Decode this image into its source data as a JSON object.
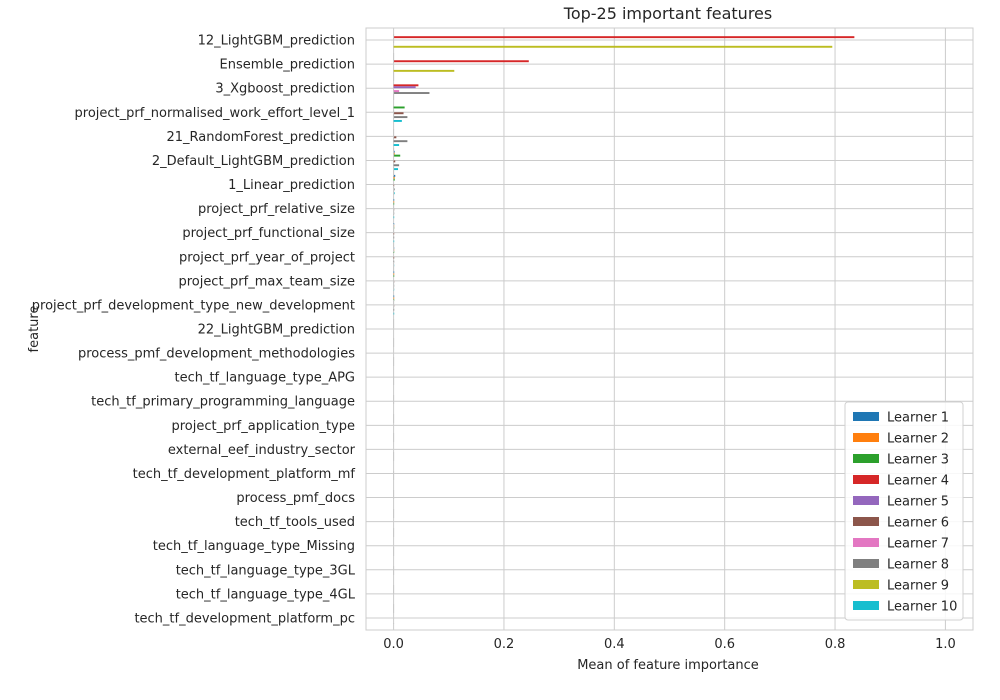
{
  "chart_data": {
    "type": "bar",
    "orientation": "horizontal",
    "title": "Top-25 important features",
    "xlabel": "Mean of feature importance",
    "ylabel": "feature",
    "xlim": [
      -0.05,
      1.05
    ],
    "xticks": [
      0.0,
      0.2,
      0.4,
      0.6,
      0.8,
      1.0
    ],
    "xtick_labels": [
      "0.0",
      "0.2",
      "0.4",
      "0.6",
      "0.8",
      "1.0"
    ],
    "grid": true,
    "legend_position": "bottom-right",
    "categories": [
      "12_LightGBM_prediction",
      "Ensemble_prediction",
      "3_Xgboost_prediction",
      "project_prf_normalised_work_effort_level_1",
      "21_RandomForest_prediction",
      "2_Default_LightGBM_prediction",
      "1_Linear_prediction",
      "project_prf_relative_size",
      "project_prf_functional_size",
      "project_prf_year_of_project",
      "project_prf_max_team_size",
      "project_prf_development_type_new_development",
      "22_LightGBM_prediction",
      "process_pmf_development_methodologies",
      "tech_tf_language_type_APG",
      "tech_tf_primary_programming_language",
      "project_prf_application_type",
      "external_eef_industry_sector",
      "tech_tf_development_platform_mf",
      "process_pmf_docs",
      "tech_tf_tools_used",
      "tech_tf_language_type_Missing",
      "tech_tf_language_type_3GL",
      "tech_tf_language_type_4GL",
      "tech_tf_development_platform_pc"
    ],
    "series": [
      {
        "name": "Learner 1",
        "color": "#1f77b4",
        "values": [
          0,
          0,
          0,
          0,
          0,
          0.002,
          0.003,
          0.001,
          0.001,
          0.001,
          0.001,
          0.001,
          0,
          0,
          0,
          0,
          0,
          0,
          0,
          0,
          0,
          0,
          0,
          0,
          0
        ]
      },
      {
        "name": "Learner 2",
        "color": "#ff7f0e",
        "values": [
          0,
          0,
          0,
          0,
          0,
          0.002,
          0.002,
          0.001,
          0.001,
          0.001,
          0.001,
          0.001,
          0,
          0,
          0,
          0,
          0,
          0,
          0,
          0,
          0,
          0,
          0,
          0,
          0
        ]
      },
      {
        "name": "Learner 3",
        "color": "#2ca02c",
        "values": [
          0,
          0,
          0,
          0.02,
          0,
          0.012,
          0.002,
          0.001,
          0.001,
          0.001,
          0.001,
          0.001,
          0,
          0,
          0,
          0,
          0,
          0,
          0,
          0,
          0,
          0,
          0,
          0,
          0
        ]
      },
      {
        "name": "Learner 4",
        "color": "#d62728",
        "values": [
          0.835,
          0.245,
          0.045,
          0,
          0,
          0,
          0,
          0,
          0,
          0,
          0,
          0,
          0,
          0,
          0,
          0,
          0,
          0,
          0,
          0,
          0,
          0,
          0,
          0,
          0
        ]
      },
      {
        "name": "Learner 5",
        "color": "#9467bd",
        "values": [
          0,
          0,
          0.04,
          0,
          0,
          0,
          0,
          0,
          0,
          0,
          0,
          0,
          0,
          0,
          0,
          0,
          0,
          0,
          0,
          0,
          0,
          0,
          0,
          0,
          0
        ]
      },
      {
        "name": "Learner 6",
        "color": "#8c564b",
        "values": [
          0,
          0,
          0,
          0.018,
          0.005,
          0.003,
          0.001,
          0.001,
          0.001,
          0.001,
          0.001,
          0.001,
          0,
          0,
          0,
          0,
          0,
          0,
          0,
          0,
          0,
          0,
          0,
          0,
          0
        ]
      },
      {
        "name": "Learner 7",
        "color": "#e377c2",
        "values": [
          0.0,
          0.0,
          0.01,
          0.0,
          0.0,
          0.0,
          0.0,
          0.0,
          0.0,
          0.0,
          0.0,
          0.0,
          0.0,
          0.0,
          0.0,
          0.0,
          0.0,
          0.0,
          0.0,
          0.0,
          0.0,
          0.0,
          0.0,
          0.0,
          0.0
        ]
      },
      {
        "name": "Learner 8",
        "color": "#7f7f7f",
        "values": [
          0,
          0,
          0.065,
          0.025,
          0.025,
          0.01,
          0.002,
          0.001,
          0.001,
          0.001,
          0.001,
          0.001,
          0,
          0,
          0,
          0,
          0,
          0,
          0,
          0,
          0,
          0,
          0,
          0,
          0
        ]
      },
      {
        "name": "Learner 9",
        "color": "#bcbd22",
        "values": [
          0.795,
          0.11,
          0,
          0,
          0,
          0,
          0,
          0,
          0,
          0,
          0,
          0,
          0,
          0,
          0,
          0,
          0,
          0,
          0,
          0,
          0,
          0,
          0,
          0,
          0
        ]
      },
      {
        "name": "Learner 10",
        "color": "#17becf",
        "values": [
          0,
          0,
          0,
          0.015,
          0.01,
          0.008,
          0.002,
          0.001,
          0.001,
          0.001,
          0.001,
          0.001,
          0,
          0,
          0,
          0,
          0,
          0,
          0,
          0,
          0,
          0,
          0,
          0,
          0
        ]
      }
    ]
  }
}
